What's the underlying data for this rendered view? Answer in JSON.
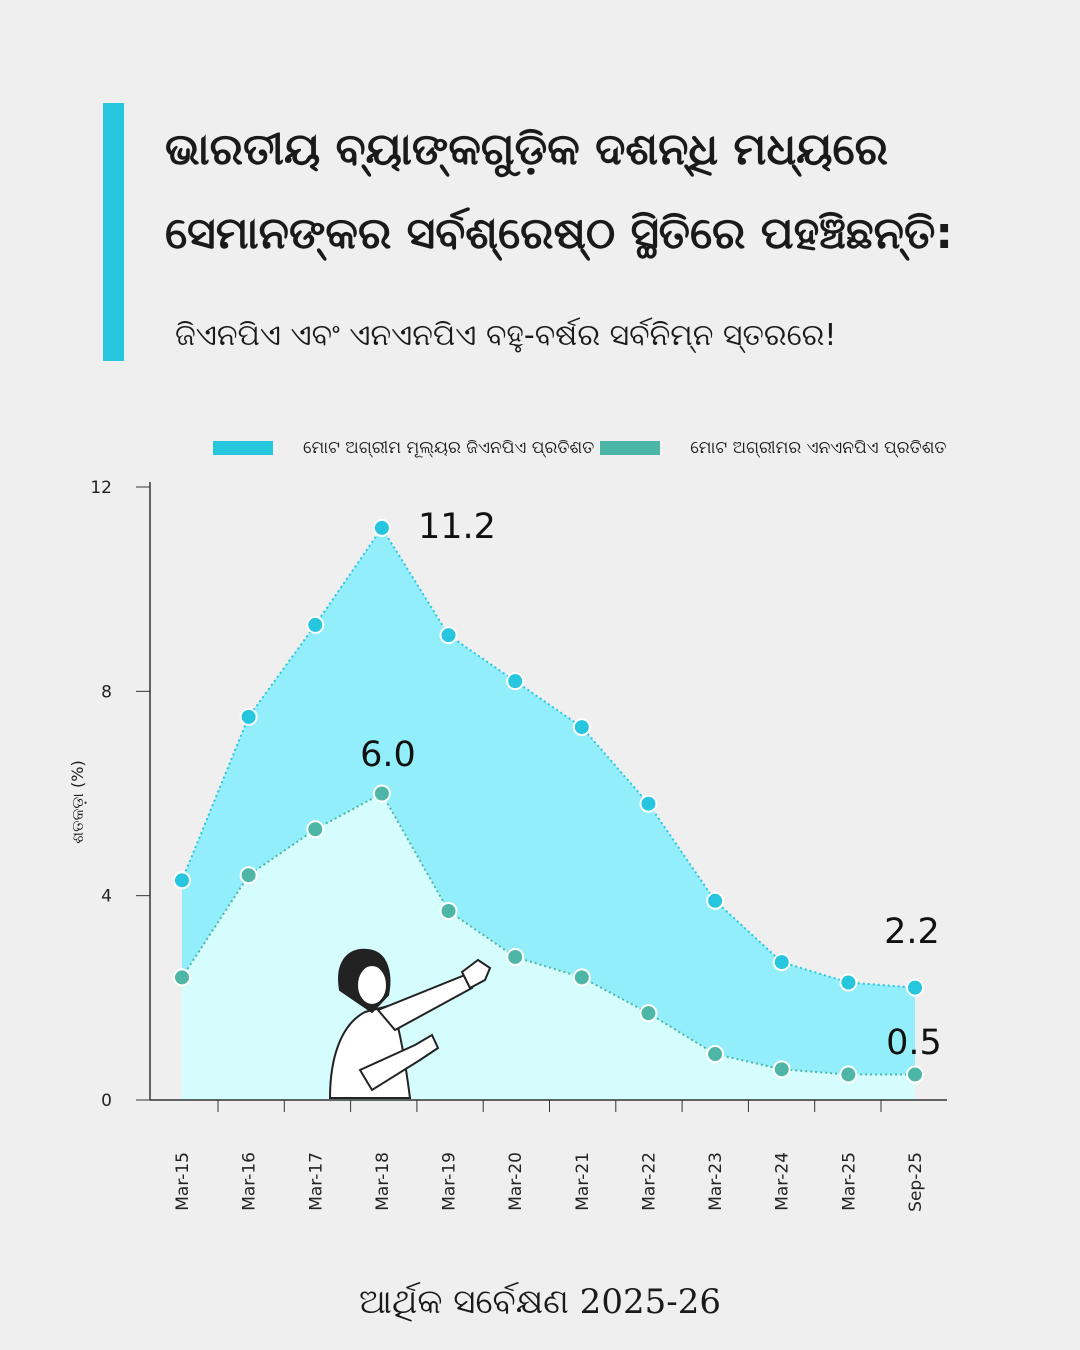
{
  "header": {
    "title_line1": "ଭାରତୀୟ ବ୍ୟାଙ୍କଗୁଡ଼ିକ ଦଶନ୍ଧି ମଧ୍ୟରେ",
    "title_line2": "ସେମାନଙ୍କର ସର୍ବଶ୍ରେଷ୍ଠ ସ୍ଥିତିରେ ପହଞ୍ଚିଛନ୍ତି:",
    "subtitle": "ଜିଏନପିଏ ଏବଂ ଏନଏନପିଏ ବହୁ-ବର୍ଷର ସର୍ବନିମ୍ନ ସ୍ତରରେ!"
  },
  "colors": {
    "accent": "#26c6df",
    "gnpa_fill": "#93eefb",
    "nnpa_fill": "#d5fdfd",
    "gnpa_point": "#26c6df",
    "nnpa_point": "#4db6a6"
  },
  "chart_data": {
    "type": "area",
    "ylabel": "ଶତକଡ଼ା (%)",
    "ylim": [
      0,
      12
    ],
    "yticks": [
      "0",
      "4",
      "8",
      "12"
    ],
    "categories": [
      "Mar-15",
      "Mar-16",
      "Mar-17",
      "Mar-18",
      "Mar-19",
      "Mar-20",
      "Mar-21",
      "Mar-22",
      "Mar-23",
      "Mar-24",
      "Mar-25",
      "Sep-25"
    ],
    "series": [
      {
        "name": "ମୋଟ ଅଗ୍ରୀମ ମୂଲ୍ୟର ଜିଏନପିଏ ପ୍ରତିଶତ",
        "values": [
          4.3,
          7.5,
          9.3,
          11.2,
          9.1,
          8.2,
          7.3,
          5.8,
          3.9,
          2.7,
          2.3,
          2.2
        ]
      },
      {
        "name": "ମୋଟ ଅଗ୍ରୀମର ଏନଏନପିଏ ପ୍ରତିଶତ",
        "values": [
          2.4,
          4.4,
          5.3,
          6.0,
          3.7,
          2.8,
          2.4,
          1.7,
          0.9,
          0.6,
          0.5,
          0.5
        ]
      }
    ],
    "annotations": [
      "11.2",
      "6.0",
      "2.2",
      "0.5"
    ],
    "legend": "top"
  },
  "footer": {
    "source": "ଆର୍ଥିକ ସର୍ବେକ୍ଷଣ 2025-26"
  }
}
